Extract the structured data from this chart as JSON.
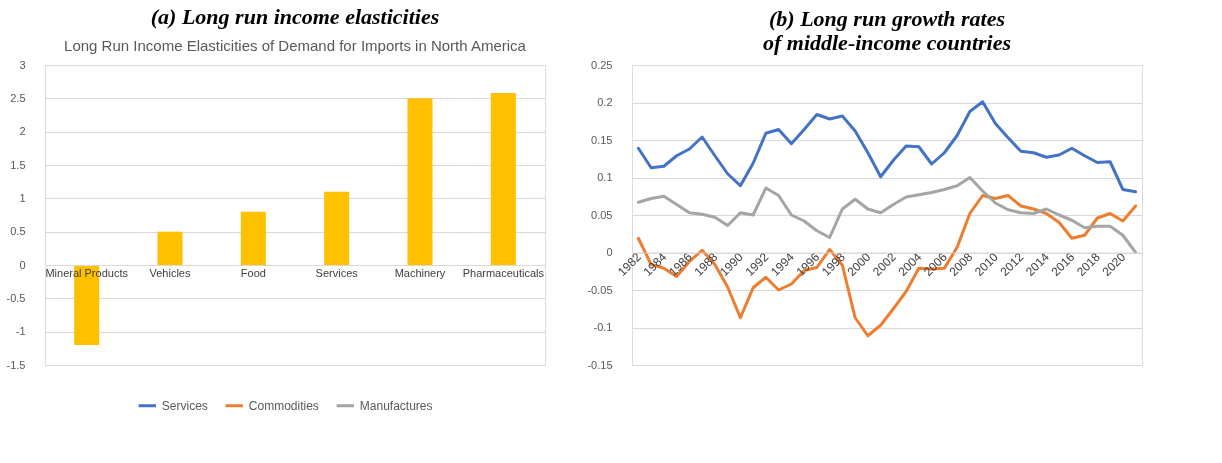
{
  "chart_data": [
    {
      "type": "bar",
      "title": "(a) Long run income elasticities",
      "subtitle": "Long Run Income Elasticities of Demand for Imports in North America",
      "categories": [
        "Mineral Products",
        "Vehicles",
        "Food",
        "Services",
        "Machinery",
        "Pharmaceuticals"
      ],
      "values": [
        -1.2,
        0.5,
        0.8,
        1.1,
        2.5,
        2.58
      ],
      "color": "#ffc000",
      "ylim": [
        -1.5,
        3
      ],
      "yticks": [
        -1.5,
        -1,
        -0.5,
        0,
        0.5,
        1,
        1.5,
        2,
        2.5,
        3
      ],
      "grid": "y",
      "legend": false
    },
    {
      "type": "line",
      "title": "(b) Long run growth rates\nof middle-income countries",
      "categories": [
        "1982",
        null,
        "1984",
        null,
        "1986",
        null,
        "1988",
        null,
        "1990",
        null,
        "1992",
        null,
        "1994",
        null,
        "1996",
        null,
        "1998",
        null,
        "2000",
        null,
        "2002",
        null,
        "2004",
        null,
        "2006",
        null,
        "2008",
        null,
        "2010",
        null,
        "2012",
        null,
        "2014",
        null,
        "2016",
        null,
        "2018",
        null,
        "2020",
        null
      ],
      "series": [
        {
          "name": "Services",
          "color": "#4472c4",
          "values": [
            0.139,
            0.113,
            0.115,
            0.129,
            0.138,
            0.154,
            0.129,
            0.105,
            0.089,
            0.119,
            0.159,
            0.164,
            0.145,
            0.164,
            0.184,
            0.178,
            0.182,
            0.162,
            0.133,
            0.101,
            0.123,
            0.142,
            0.141,
            0.118,
            0.133,
            0.156,
            0.188,
            0.201,
            0.172,
            0.153,
            0.135,
            0.133,
            0.127,
            0.13,
            0.139,
            0.129,
            0.12,
            0.121,
            0.084,
            0.081
          ]
        },
        {
          "name": "Commodities",
          "color": "#ed7d31",
          "values": [
            0.019,
            -0.016,
            -0.021,
            -0.032,
            -0.012,
            0.003,
            -0.016,
            -0.046,
            -0.087,
            -0.047,
            -0.033,
            -0.05,
            -0.042,
            -0.024,
            -0.02,
            0.004,
            -0.017,
            -0.087,
            -0.111,
            -0.097,
            -0.075,
            -0.052,
            -0.021,
            -0.022,
            -0.021,
            0.007,
            0.052,
            0.076,
            0.072,
            0.076,
            0.062,
            0.058,
            0.052,
            0.04,
            0.019,
            0.023,
            0.046,
            0.052,
            0.042,
            0.062
          ]
        },
        {
          "name": "Manufactures",
          "color": "#a5a5a5",
          "values": [
            0.067,
            0.072,
            0.075,
            0.064,
            0.053,
            0.051,
            0.047,
            0.036,
            0.053,
            0.05,
            0.086,
            0.076,
            0.05,
            0.042,
            0.029,
            0.02,
            0.058,
            0.071,
            0.058,
            0.053,
            0.064,
            0.074,
            0.077,
            0.08,
            0.084,
            0.089,
            0.1,
            0.082,
            0.066,
            0.057,
            0.053,
            0.052,
            0.058,
            0.05,
            0.043,
            0.033,
            0.035,
            0.035,
            0.023,
            0.0
          ]
        }
      ],
      "ylim": [
        -0.15,
        0.25
      ],
      "yticks": [
        -0.15,
        -0.1,
        -0.05,
        0,
        0.05,
        0.1,
        0.15,
        0.2,
        0.25
      ],
      "grid": "y",
      "legend": "bottom"
    }
  ]
}
